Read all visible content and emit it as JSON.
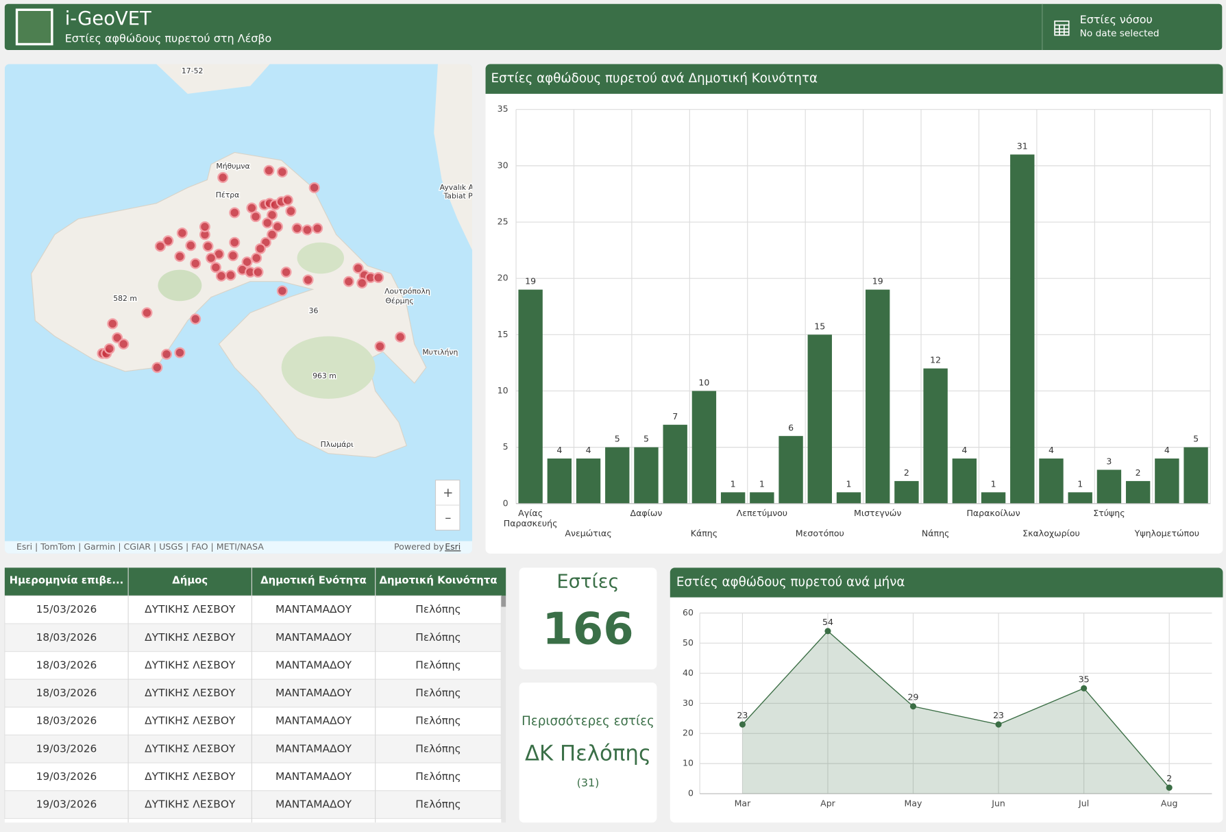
{
  "header": {
    "title": "i-GeoVET",
    "subtitle": "Εστίες αφθώδους πυρετού στη Λέσβο",
    "filter_title": "Εστίες νόσου",
    "filter_status": "No date selected"
  },
  "map": {
    "labels": [
      "17-52",
      "Μήθυμνα",
      "Πέτρα",
      "Ayvalık A",
      "Tabiat P",
      "582 m",
      "36",
      "Λουτρόπολη",
      "Θέρμης",
      "Μυτιλήνη",
      "963 m",
      "Πλωμάρι"
    ],
    "attribution": "Esri | TomTom | Garmin | CGIAR | USGS | FAO | METI/NASA",
    "powered_by": "Powered by",
    "powered_by_link": "Esri",
    "zoom_in": "+",
    "zoom_out": "–"
  },
  "chart_data": [
    {
      "type": "bar",
      "title": "Εστίες αφθώδους πυρετού ανά Δημοτική Κοινότητα",
      "categories": [
        "Αγίας Παρασκευής",
        null,
        "Ανεμώτιας",
        null,
        "Δαφίων",
        null,
        "Κάπης",
        null,
        "Λεπετύμνου",
        null,
        "Μεσοτόπου",
        null,
        "Μιστεγνών",
        null,
        "Νάπης",
        null,
        "Παρακοίλων",
        null,
        "Σκαλοχωρίου",
        null,
        "Στύψης",
        null,
        "Υψηλομετώπου",
        null
      ],
      "values": [
        19,
        4,
        4,
        5,
        5,
        7,
        10,
        1,
        1,
        6,
        15,
        1,
        19,
        2,
        12,
        4,
        1,
        31,
        4,
        1,
        3,
        2,
        4,
        5
      ],
      "color": "#3b6e45",
      "ylim": [
        0,
        35
      ],
      "yticks": [
        0,
        5,
        10,
        15,
        20,
        25,
        30,
        35
      ],
      "grid": true
    },
    {
      "type": "line",
      "title": "Εστίες αφθώδους πυρετού ανά μήνα",
      "categories": [
        "Mar",
        "Apr",
        "May",
        "Jun",
        "Jul",
        "Aug"
      ],
      "values": [
        23,
        54,
        29,
        23,
        35,
        2
      ],
      "color": "#3b6e45",
      "ylim": [
        0,
        60
      ],
      "yticks": [
        0,
        10,
        20,
        30,
        40,
        50,
        60
      ],
      "grid": true
    }
  ],
  "table": {
    "columns": [
      "Ημερομηνία επιβε...",
      "Δήμος",
      "Δημοτική Ενότητα",
      "Δημοτική Κοινότητα"
    ],
    "rows": [
      [
        "15/03/2026",
        "ΔΥΤΙΚΗΣ ΛΕΣΒΟΥ",
        "ΜΑΝΤΑΜΑΔΟΥ",
        "Πελόπης"
      ],
      [
        "18/03/2026",
        "ΔΥΤΙΚΗΣ ΛΕΣΒΟΥ",
        "ΜΑΝΤΑΜΑΔΟΥ",
        "Πελόπης"
      ],
      [
        "18/03/2026",
        "ΔΥΤΙΚΗΣ ΛΕΣΒΟΥ",
        "ΜΑΝΤΑΜΑΔΟΥ",
        "Πελόπης"
      ],
      [
        "18/03/2026",
        "ΔΥΤΙΚΗΣ ΛΕΣΒΟΥ",
        "ΜΑΝΤΑΜΑΔΟΥ",
        "Πελόπης"
      ],
      [
        "18/03/2026",
        "ΔΥΤΙΚΗΣ ΛΕΣΒΟΥ",
        "ΜΑΝΤΑΜΑΔΟΥ",
        "Πελόπης"
      ],
      [
        "19/03/2026",
        "ΔΥΤΙΚΗΣ ΛΕΣΒΟΥ",
        "ΜΑΝΤΑΜΑΔΟΥ",
        "Πελόπης"
      ],
      [
        "19/03/2026",
        "ΔΥΤΙΚΗΣ ΛΕΣΒΟΥ",
        "ΜΑΝΤΑΜΑΔΟΥ",
        "Πελόπης"
      ],
      [
        "19/03/2026",
        "ΔΥΤΙΚΗΣ ΛΕΣΒΟΥ",
        "ΜΑΝΤΑΜΑΔΟΥ",
        "Πελόπης"
      ]
    ]
  },
  "indicators": [
    {
      "title": "Εστίες",
      "value": 166
    },
    {
      "title": "Περισσότερες εστίες",
      "value": "ΔΚ Πελόπης",
      "note": "(31)"
    }
  ]
}
